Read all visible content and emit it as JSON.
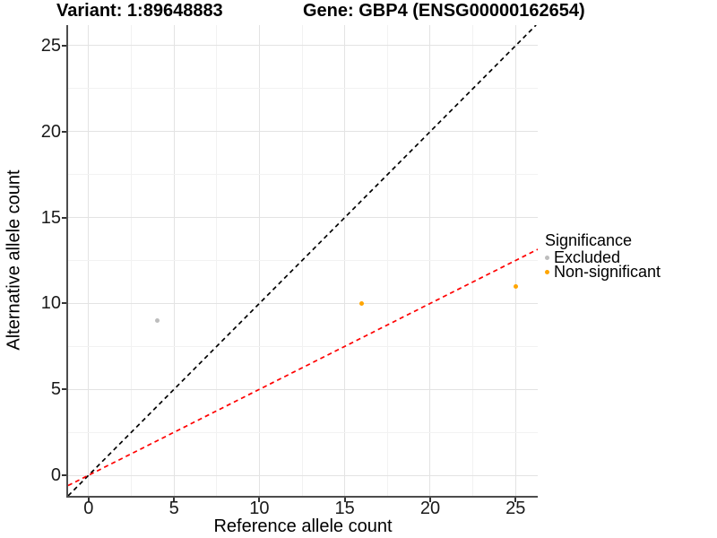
{
  "titles": {
    "variant": "Variant: 1:89648883",
    "gene": "Gene: GBP4 (ENSG00000162654)"
  },
  "chart_data": {
    "type": "scatter",
    "title": "Variant: 1:89648883 — Gene: GBP4 (ENSG00000162654)",
    "xlabel": "Reference allele count",
    "ylabel": "Alternative allele count",
    "xlim": [
      -1.2,
      26.3
    ],
    "ylim": [
      -1.2,
      26.2
    ],
    "x_ticks": [
      0,
      5,
      10,
      15,
      20,
      25
    ],
    "y_ticks": [
      0,
      5,
      10,
      15,
      20,
      25
    ],
    "grid": "major+minor",
    "background": "#ffffff",
    "gridline_major_color": "#e3e3e3",
    "gridline_minor_color": "#f2f2f2",
    "legend": {
      "title": "Significance",
      "position": "right"
    },
    "series": [
      {
        "name": "Excluded",
        "color": "#BDBDBD",
        "points": [
          {
            "x": 4,
            "y": 9
          }
        ]
      },
      {
        "name": "Non-significant",
        "color": "#FFA500",
        "points": [
          {
            "x": 16,
            "y": 10
          },
          {
            "x": 25,
            "y": 11
          }
        ]
      }
    ],
    "reference_lines": [
      {
        "name": "identity-line",
        "slope": 1,
        "intercept": 0,
        "color": "#000000",
        "style": "dashed"
      },
      {
        "name": "expected-ratio-line",
        "slope": 0.5,
        "intercept": 0,
        "color": "#FF0000",
        "style": "dashed"
      }
    ]
  }
}
